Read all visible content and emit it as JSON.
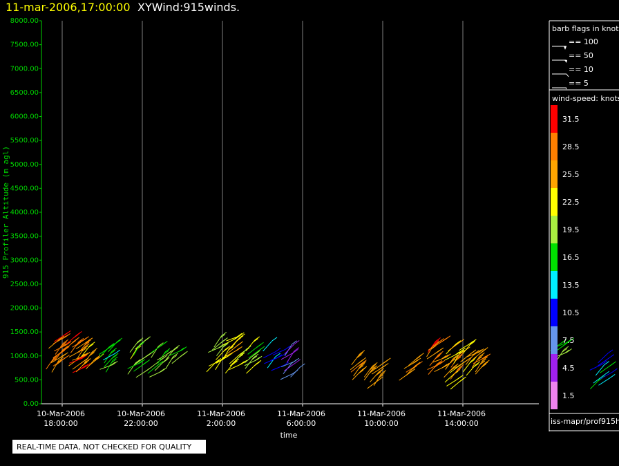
{
  "header": {
    "datetime": "11-mar-2006,17:00:00",
    "product": "XYWind:915winds."
  },
  "chart_data": {
    "type": "scatter",
    "title": "XYWind:915winds.",
    "xlabel": "time",
    "ylabel": "915 Profiler Altitude (m agl)",
    "ylim": [
      0,
      8000
    ],
    "xlim_hours_from_first_tick": [
      -1.5,
      26.0
    ],
    "yticks": [
      "0.00",
      "500.00",
      "1000.00",
      "1500.00",
      "2000.00",
      "2500.00",
      "3000.00",
      "3500.00",
      "4000.00",
      "4500.00",
      "5000.00",
      "5500.00",
      "6000.00",
      "6500.00",
      "7000.00",
      "7500.00",
      "8000.00"
    ],
    "xticks": [
      {
        "date": "10-Mar-2006",
        "time": "18:00:00"
      },
      {
        "date": "10-Mar-2006",
        "time": "22:00:00"
      },
      {
        "date": "11-Mar-2006",
        "time": "2:00:00"
      },
      {
        "date": "11-Mar-2006",
        "time": "6:00:00"
      },
      {
        "date": "11-Mar-2006",
        "time": "10:00:00"
      },
      {
        "date": "11-Mar-2006",
        "time": "14:00:00"
      }
    ],
    "grid": "vertical",
    "clusters": [
      {
        "t_hours": -0.6,
        "alt_range_m": [
          650,
          1300
        ],
        "speed_kt": [
          25,
          31
        ]
      },
      {
        "t_hours": 0.4,
        "alt_range_m": [
          650,
          1250
        ],
        "speed_kt": [
          25,
          31
        ]
      },
      {
        "t_hours": 1.0,
        "alt_range_m": [
          650,
          1150
        ],
        "speed_kt": [
          22,
          28
        ]
      },
      {
        "t_hours": 2.0,
        "alt_range_m": [
          650,
          1100
        ],
        "speed_kt": [
          13,
          19
        ]
      },
      {
        "t_hours": 3.5,
        "alt_range_m": [
          550,
          1150
        ],
        "speed_kt": [
          16,
          22
        ]
      },
      {
        "t_hours": 4.5,
        "alt_range_m": [
          550,
          1050
        ],
        "speed_kt": [
          16,
          22
        ]
      },
      {
        "t_hours": 5.3,
        "alt_range_m": [
          750,
          1000
        ],
        "speed_kt": [
          13,
          19
        ]
      },
      {
        "t_hours": 7.5,
        "alt_range_m": [
          650,
          1200
        ],
        "speed_kt": [
          19,
          22
        ]
      },
      {
        "t_hours": 8.3,
        "alt_range_m": [
          650,
          1300
        ],
        "speed_kt": [
          22,
          25
        ]
      },
      {
        "t_hours": 9.0,
        "alt_range_m": [
          650,
          1100
        ],
        "speed_kt": [
          16,
          22
        ]
      },
      {
        "t_hours": 10.3,
        "alt_range_m": [
          700,
          1100
        ],
        "speed_kt": [
          10,
          13
        ]
      },
      {
        "t_hours": 11.2,
        "alt_range_m": [
          500,
          1050
        ],
        "speed_kt": [
          4,
          10
        ]
      },
      {
        "t_hours": 14.5,
        "alt_range_m": [
          500,
          800
        ],
        "speed_kt": [
          25,
          28
        ]
      },
      {
        "t_hours": 15.3,
        "alt_range_m": [
          300,
          700
        ],
        "speed_kt": [
          25,
          28
        ]
      },
      {
        "t_hours": 17.0,
        "alt_range_m": [
          500,
          800
        ],
        "speed_kt": [
          25,
          28
        ]
      },
      {
        "t_hours": 18.3,
        "alt_range_m": [
          600,
          1200
        ],
        "speed_kt": [
          25,
          31
        ]
      },
      {
        "t_hours": 19.3,
        "alt_range_m": [
          300,
          1100
        ],
        "speed_kt": [
          22,
          28
        ]
      },
      {
        "t_hours": 19.9,
        "alt_range_m": [
          600,
          1100
        ],
        "speed_kt": [
          22,
          25
        ]
      },
      {
        "t_hours": 20.5,
        "alt_range_m": [
          600,
          900
        ],
        "speed_kt": [
          25,
          28
        ]
      },
      {
        "t_hours": 24.4,
        "alt_range_m": [
          900,
          1200
        ],
        "speed_kt": [
          16,
          19
        ]
      },
      {
        "t_hours": 26.6,
        "alt_range_m": [
          300,
          850
        ],
        "speed_kt": [
          10,
          16
        ]
      }
    ]
  },
  "legend": {
    "barb_title": "barb flags in knots",
    "barb_entries": [
      "== 100",
      "== 50",
      "== 10",
      "== 5"
    ],
    "speed_title": "wind-speed: knots",
    "colorbar": [
      {
        "label": "31.5",
        "color": "#ff0000"
      },
      {
        "label": "28.5",
        "color": "#ff7f00"
      },
      {
        "label": "25.5",
        "color": "#ffa500"
      },
      {
        "label": "22.5",
        "color": "#ffff00"
      },
      {
        "label": "19.5",
        "color": "#a8f040"
      },
      {
        "label": "16.5",
        "color": "#00e000"
      },
      {
        "label": "13.5",
        "color": "#00f0ff"
      },
      {
        "label": "10.5",
        "color": "#0000ff"
      },
      {
        "label": "7.5",
        "color": "#6495ed"
      },
      {
        "label": "4.5",
        "color": "#a020f0"
      },
      {
        "label": "1.5",
        "color": "#ee82ee"
      }
    ],
    "source": "iss-mapr/prof915h"
  },
  "footer": {
    "notice": "REAL-TIME DATA, NOT CHECKED FOR QUALITY"
  },
  "colors": {
    "background": "#000000",
    "y_axis": "#00d400",
    "x_axis": "#ffffff",
    "grid": "#808080"
  }
}
